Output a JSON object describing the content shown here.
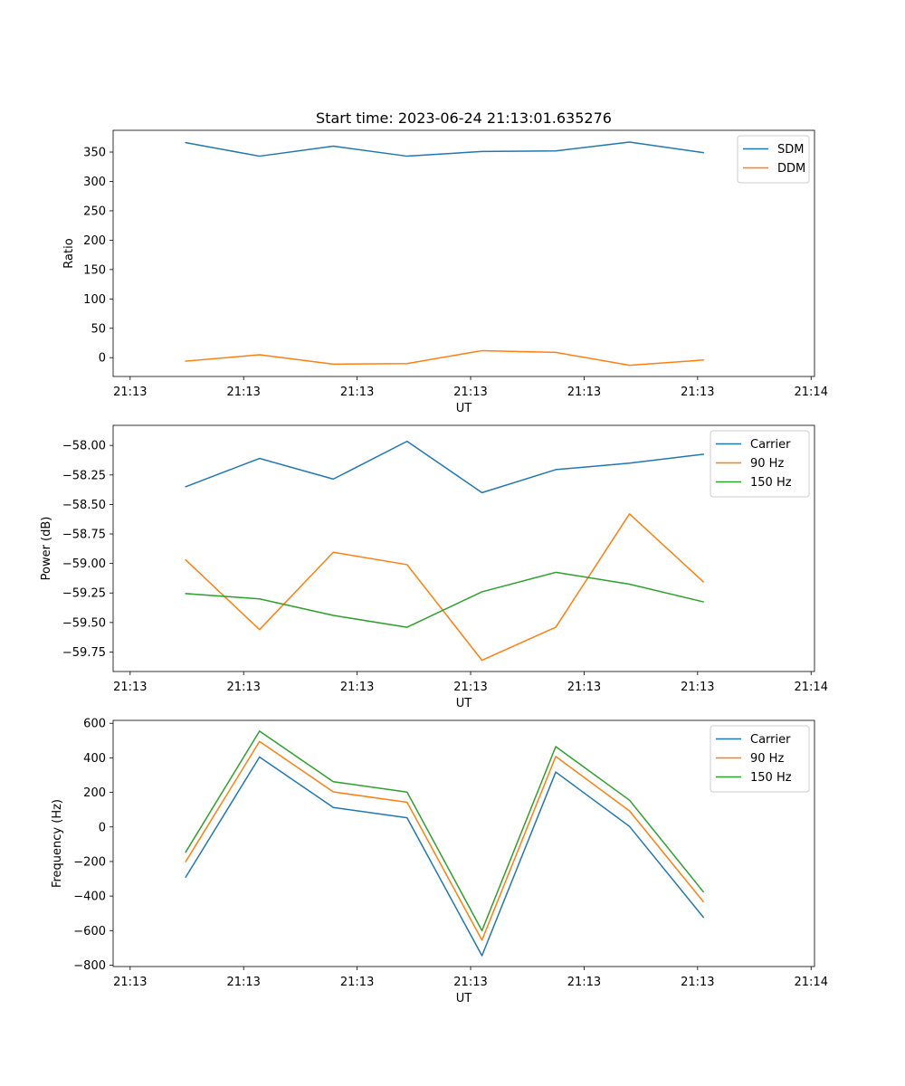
{
  "title": "Start time: 2023-06-24 21:13:01.635276",
  "colors": {
    "blue": "#1f77b4",
    "orange": "#ff7f0e",
    "green": "#2ca02c"
  },
  "chart_data": [
    {
      "type": "line",
      "xlabel": "UT",
      "ylabel": "Ratio",
      "x_tick_labels": [
        "21:13",
        "21:13",
        "21:13",
        "21:13",
        "21:13",
        "21:13",
        "21:14"
      ],
      "x_ticks": [
        0,
        1,
        2,
        3,
        4,
        5,
        6
      ],
      "xlim": [
        -0.15,
        6.03
      ],
      "x": [
        0.49,
        1.14,
        1.79,
        2.44,
        3.1,
        3.75,
        4.4,
        5.05
      ],
      "y_ticks": [
        0,
        50,
        100,
        150,
        200,
        250,
        300,
        350
      ],
      "ylim": [
        -32,
        387
      ],
      "legend": "top-right",
      "series": [
        {
          "name": "SDM",
          "color": "#1f77b4",
          "values": [
            366,
            343,
            360,
            343,
            351,
            352,
            367,
            349
          ]
        },
        {
          "name": "DDM",
          "color": "#ff7f0e",
          "values": [
            -6,
            5,
            -11,
            -10,
            12,
            9,
            -13,
            -4
          ]
        }
      ]
    },
    {
      "type": "line",
      "xlabel": "UT",
      "ylabel": "Power (dB)",
      "x_tick_labels": [
        "21:13",
        "21:13",
        "21:13",
        "21:13",
        "21:13",
        "21:13",
        "21:14"
      ],
      "x_ticks": [
        0,
        1,
        2,
        3,
        4,
        5,
        6
      ],
      "xlim": [
        -0.15,
        6.03
      ],
      "x": [
        0.49,
        1.14,
        1.79,
        2.44,
        3.1,
        3.75,
        4.4,
        5.05
      ],
      "y_ticks": [
        -59.75,
        -59.5,
        -59.25,
        -59.0,
        -58.75,
        -58.5,
        -58.25,
        -58.0
      ],
      "y_tick_labels": [
        "−59.75",
        "−59.50",
        "−59.25",
        "−59.00",
        "−58.75",
        "−58.50",
        "−58.25",
        "−58.00"
      ],
      "ylim": [
        -59.915,
        -57.83
      ],
      "legend": "top-right",
      "series": [
        {
          "name": "Carrier",
          "color": "#1f77b4",
          "values": [
            -58.35,
            -58.11,
            -58.285,
            -57.965,
            -58.4,
            -58.205,
            -58.15,
            -58.075
          ]
        },
        {
          "name": "90 Hz",
          "color": "#ff7f0e",
          "values": [
            -58.97,
            -59.56,
            -58.905,
            -59.01,
            -59.82,
            -59.54,
            -58.58,
            -59.155
          ]
        },
        {
          "name": "150 Hz",
          "color": "#2ca02c",
          "values": [
            -59.255,
            -59.3,
            -59.44,
            -59.54,
            -59.24,
            -59.075,
            -59.175,
            -59.325
          ]
        }
      ]
    },
    {
      "type": "line",
      "xlabel": "UT",
      "ylabel": "Frequency (Hz)",
      "x_tick_labels": [
        "21:13",
        "21:13",
        "21:13",
        "21:13",
        "21:13",
        "21:13",
        "21:14"
      ],
      "x_ticks": [
        0,
        1,
        2,
        3,
        4,
        5,
        6
      ],
      "xlim": [
        -0.15,
        6.03
      ],
      "x": [
        0.49,
        1.14,
        1.79,
        2.44,
        3.1,
        3.75,
        4.4,
        5.05
      ],
      "y_ticks": [
        -800,
        -600,
        -400,
        -200,
        0,
        200,
        400,
        600
      ],
      "y_tick_labels": [
        "−800",
        "−600",
        "−400",
        "−200",
        "0",
        "200",
        "400",
        "600"
      ],
      "ylim": [
        -808,
        617
      ],
      "legend": "top-right",
      "series": [
        {
          "name": "Carrier",
          "color": "#1f77b4",
          "values": [
            -290,
            405,
            113,
            53,
            -745,
            318,
            3,
            -522
          ]
        },
        {
          "name": "90 Hz",
          "color": "#ff7f0e",
          "values": [
            -200,
            495,
            203,
            143,
            -655,
            408,
            93,
            -432
          ]
        },
        {
          "name": "150 Hz",
          "color": "#2ca02c",
          "values": [
            -145,
            555,
            262,
            202,
            -600,
            465,
            155,
            -375
          ]
        }
      ]
    }
  ]
}
